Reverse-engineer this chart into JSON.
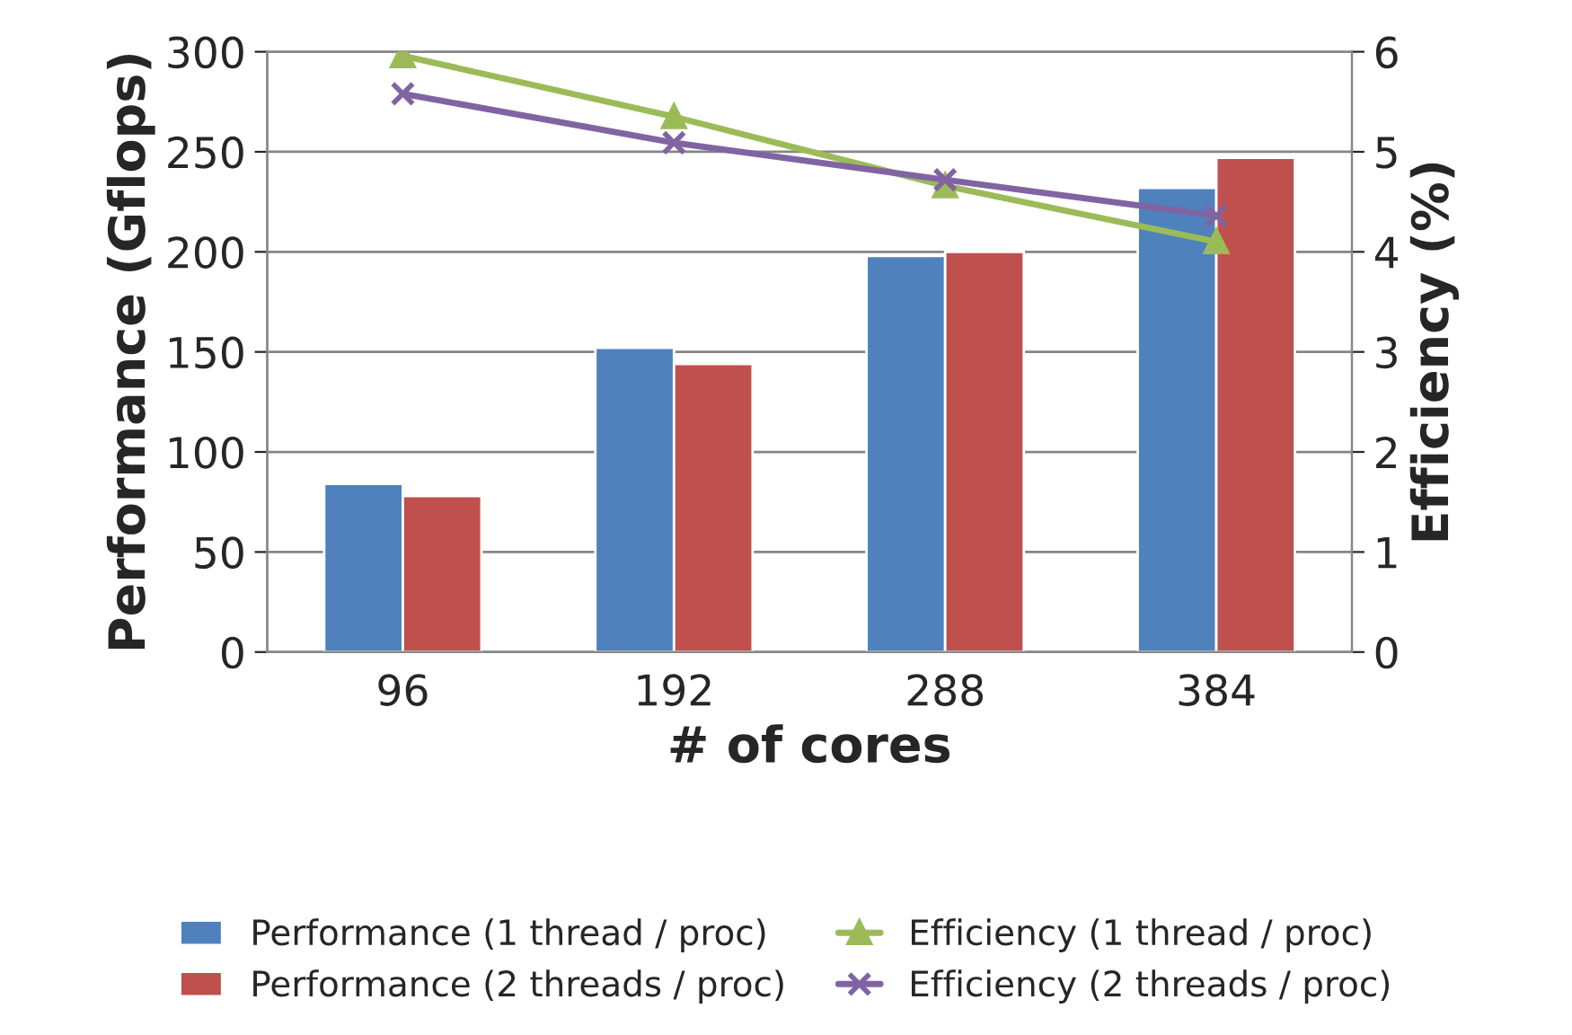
{
  "chart_data": {
    "type": "bar",
    "xlabel": "# of cores",
    "ylabel": "Performance (Gflops)",
    "y2label": "Efficiency (%)",
    "categories": [
      "96",
      "192",
      "288",
      "384"
    ],
    "series": [
      {
        "name": "Performance (1 thread / proc)",
        "color": "#4f81bd",
        "values": [
          84,
          152,
          198,
          232
        ]
      },
      {
        "name": "Performance (2 threads / proc)",
        "color": "#c0504d",
        "values": [
          78,
          144,
          200,
          247
        ]
      },
      {
        "name": "Efficiency (1 thread / proc)",
        "type": "line",
        "axis": "y2",
        "marker": "triangle",
        "color": "#9bbb59",
        "values": [
          5.96,
          5.35,
          4.66,
          4.1
        ]
      },
      {
        "name": "Efficiency (2 threads / proc)",
        "type": "line",
        "axis": "y2",
        "marker": "cross",
        "color": "#8064a2",
        "values": [
          5.58,
          5.09,
          4.72,
          4.36
        ]
      }
    ],
    "ylim": [
      0,
      300
    ],
    "yticks": [
      0,
      50,
      100,
      150,
      200,
      250,
      300
    ],
    "y2lim": [
      0,
      6
    ],
    "y2ticks": [
      0,
      1,
      2,
      3,
      4,
      5,
      6
    ],
    "grid": "y",
    "legend": "bottom"
  }
}
